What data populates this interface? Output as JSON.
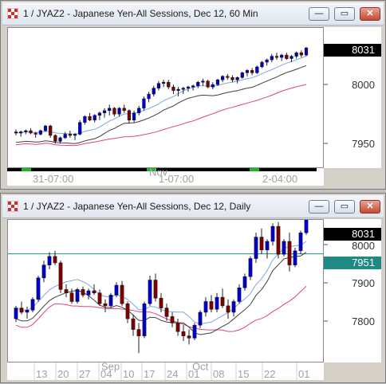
{
  "window1": {
    "title": "1 / JYAZ2 - Japanese Yen-All Sessions, Dec 12, 60 Min",
    "buttons": {
      "minimize": "—",
      "restore": "▭",
      "close": "✕"
    },
    "price_labels": [
      "8000",
      "7950"
    ],
    "last_price": "8031",
    "date_labels": [
      "31-07:00",
      "1-07:00",
      "2-04:00"
    ],
    "month_label": "Nov"
  },
  "window2": {
    "title": "1 / JYAZ2 - Japanese Yen-All Sessions, Dec 12, Daily",
    "buttons": {
      "minimize": "—",
      "restore": "▭",
      "close": "✕"
    },
    "price_labels": [
      "8000",
      "7900",
      "7800"
    ],
    "last_price": "8031",
    "line_price": "7951",
    "date_labels": [
      "13",
      "20",
      "27",
      "04",
      "10",
      "17",
      "24",
      "01",
      "08",
      "15",
      "22",
      "01"
    ],
    "month_labels": [
      "Sep",
      "Oct"
    ]
  },
  "colors": {
    "up": "#0000cc",
    "down": "#800000",
    "ma_fast": "#7aa7e0",
    "ma_slow": "#e0408a",
    "band": "#404040",
    "hline": "#1f8a84",
    "price_box": "#000000",
    "hline_box": "#1f8a84",
    "session_green": "#18b82a"
  },
  "chart_data": [
    {
      "type": "candlestick",
      "title": "1 / JYAZ2 - Japanese Yen-All Sessions, Dec 12, 60 Min",
      "ylim": [
        7930,
        8048
      ],
      "y_ticks": [
        8000,
        7950
      ],
      "last": 8031,
      "candles": [
        [
          7960,
          7962,
          7957,
          7959
        ],
        [
          7959,
          7961,
          7956,
          7960
        ],
        [
          7960,
          7962,
          7958,
          7961
        ],
        [
          7961,
          7963,
          7958,
          7959
        ],
        [
          7959,
          7960,
          7955,
          7958
        ],
        [
          7958,
          7962,
          7957,
          7961
        ],
        [
          7961,
          7966,
          7960,
          7965
        ],
        [
          7965,
          7966,
          7955,
          7957
        ],
        [
          7957,
          7958,
          7950,
          7952
        ],
        [
          7952,
          7956,
          7950,
          7955
        ],
        [
          7955,
          7960,
          7954,
          7958
        ],
        [
          7958,
          7961,
          7955,
          7957
        ],
        [
          7957,
          7959,
          7953,
          7958
        ],
        [
          7958,
          7970,
          7957,
          7968
        ],
        [
          7968,
          7974,
          7966,
          7973
        ],
        [
          7973,
          7976,
          7969,
          7970
        ],
        [
          7970,
          7975,
          7968,
          7974
        ],
        [
          7974,
          7977,
          7970,
          7976
        ],
        [
          7976,
          7980,
          7972,
          7978
        ],
        [
          7978,
          7983,
          7974,
          7980
        ],
        [
          7980,
          7981,
          7973,
          7975
        ],
        [
          7975,
          7981,
          7973,
          7980
        ],
        [
          7980,
          7983,
          7976,
          7978
        ],
        [
          7978,
          7979,
          7967,
          7970
        ],
        [
          7970,
          7978,
          7968,
          7976
        ],
        [
          7976,
          7982,
          7974,
          7980
        ],
        [
          7980,
          7990,
          7978,
          7988
        ],
        [
          7988,
          7994,
          7985,
          7992
        ],
        [
          7992,
          7999,
          7990,
          7997
        ],
        [
          7997,
          8003,
          7995,
          8001
        ],
        [
          8001,
          8004,
          7998,
          8002
        ],
        [
          8002,
          8004,
          7996,
          7998
        ],
        [
          7998,
          8000,
          7992,
          7995
        ],
        [
          7995,
          7998,
          7990,
          7996
        ],
        [
          7996,
          7998,
          7992,
          7997
        ],
        [
          7997,
          7999,
          7994,
          7998
        ],
        [
          7998,
          8000,
          7995,
          7999
        ],
        [
          7999,
          8003,
          7997,
          8002
        ],
        [
          8002,
          8005,
          7999,
          8003
        ],
        [
          8003,
          8004,
          7997,
          7998
        ],
        [
          7998,
          8002,
          7996,
          8000
        ],
        [
          8000,
          8005,
          7999,
          8004
        ],
        [
          8004,
          8008,
          8002,
          8007
        ],
        [
          8007,
          8009,
          8004,
          8006
        ],
        [
          8006,
          8008,
          8002,
          8004
        ],
        [
          8004,
          8007,
          8001,
          8006
        ],
        [
          8006,
          8011,
          8005,
          8010
        ],
        [
          8010,
          8013,
          8007,
          8012
        ],
        [
          8012,
          8014,
          8008,
          8010
        ],
        [
          8010,
          8016,
          8009,
          8015
        ],
        [
          8015,
          8020,
          8014,
          8019
        ],
        [
          8019,
          8022,
          8016,
          8021
        ],
        [
          8021,
          8026,
          8019,
          8024
        ],
        [
          8024,
          8027,
          8021,
          8023
        ],
        [
          8023,
          8026,
          8020,
          8025
        ],
        [
          8025,
          8027,
          8021,
          8022
        ],
        [
          8022,
          8025,
          8019,
          8024
        ],
        [
          8024,
          8028,
          8022,
          8027
        ],
        [
          8027,
          8029,
          8023,
          8025
        ],
        [
          8025,
          8032,
          8024,
          8031
        ]
      ]
    },
    {
      "type": "candlestick",
      "title": "1 / JYAZ2 - Japanese Yen-All Sessions, Dec 12, Daily",
      "ylim": [
        7700,
        8030
      ],
      "y_ticks": [
        8000,
        7900,
        7800
      ],
      "last": 8031,
      "hline": 7951,
      "x_tick_labels": [
        "13",
        "20",
        "27",
        "04",
        "10",
        "17",
        "24",
        "01",
        "08",
        "15",
        "22",
        "01"
      ],
      "candles": [
        [
          7800,
          7830,
          7792,
          7825
        ],
        [
          7825,
          7840,
          7810,
          7815
        ],
        [
          7815,
          7828,
          7800,
          7820
        ],
        [
          7820,
          7850,
          7815,
          7845
        ],
        [
          7845,
          7900,
          7840,
          7895
        ],
        [
          7895,
          7935,
          7885,
          7925
        ],
        [
          7925,
          7955,
          7915,
          7945
        ],
        [
          7945,
          7958,
          7925,
          7930
        ],
        [
          7930,
          7935,
          7860,
          7868
        ],
        [
          7868,
          7880,
          7850,
          7860
        ],
        [
          7860,
          7870,
          7835,
          7840
        ],
        [
          7840,
          7872,
          7835,
          7868
        ],
        [
          7868,
          7875,
          7850,
          7855
        ],
        [
          7855,
          7870,
          7845,
          7865
        ],
        [
          7865,
          7880,
          7855,
          7860
        ],
        [
          7860,
          7868,
          7830,
          7835
        ],
        [
          7835,
          7845,
          7815,
          7830
        ],
        [
          7830,
          7860,
          7825,
          7855
        ],
        [
          7855,
          7885,
          7850,
          7878
        ],
        [
          7878,
          7888,
          7830,
          7835
        ],
        [
          7835,
          7840,
          7790,
          7800
        ],
        [
          7800,
          7810,
          7760,
          7775
        ],
        [
          7775,
          7790,
          7720,
          7760
        ],
        [
          7760,
          7840,
          7755,
          7835
        ],
        [
          7835,
          7900,
          7830,
          7890
        ],
        [
          7890,
          7905,
          7840,
          7848
        ],
        [
          7848,
          7860,
          7815,
          7825
        ],
        [
          7825,
          7835,
          7795,
          7805
        ],
        [
          7805,
          7815,
          7780,
          7790
        ],
        [
          7790,
          7800,
          7760,
          7770
        ],
        [
          7770,
          7785,
          7748,
          7760
        ],
        [
          7760,
          7775,
          7740,
          7755
        ],
        [
          7755,
          7790,
          7750,
          7785
        ],
        [
          7785,
          7820,
          7778,
          7815
        ],
        [
          7815,
          7850,
          7805,
          7840
        ],
        [
          7840,
          7855,
          7815,
          7822
        ],
        [
          7822,
          7860,
          7815,
          7850
        ],
        [
          7850,
          7870,
          7825,
          7830
        ],
        [
          7830,
          7845,
          7800,
          7815
        ],
        [
          7815,
          7845,
          7805,
          7840
        ],
        [
          7840,
          7880,
          7835,
          7872
        ],
        [
          7872,
          7905,
          7865,
          7898
        ],
        [
          7898,
          7945,
          7890,
          7940
        ],
        [
          7940,
          8000,
          7930,
          7990
        ],
        [
          7990,
          8010,
          7950,
          7960
        ],
        [
          7960,
          7985,
          7940,
          7980
        ],
        [
          7980,
          8022,
          7970,
          8015
        ],
        [
          8015,
          8025,
          7940,
          7950
        ],
        [
          7950,
          7985,
          7945,
          7980
        ],
        [
          7980,
          8000,
          7910,
          7925
        ],
        [
          7925,
          7965,
          7920,
          7958
        ],
        [
          7958,
          8005,
          7950,
          8000
        ],
        [
          8000,
          8035,
          7995,
          8031
        ]
      ]
    }
  ]
}
